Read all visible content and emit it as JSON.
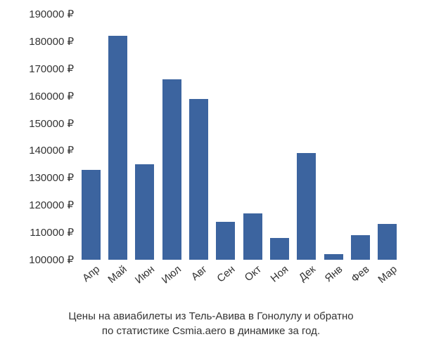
{
  "chart": {
    "type": "bar",
    "background_color": "#ffffff",
    "bar_color": "#3c649f",
    "text_color": "#333333",
    "currency_symbol": "₽",
    "ylim": [
      100000,
      190000
    ],
    "ytick_step": 10000,
    "yticks": [
      100000,
      110000,
      120000,
      130000,
      140000,
      150000,
      160000,
      170000,
      180000,
      190000
    ],
    "ytick_labels": [
      "100000 ₽",
      "110000 ₽",
      "120000 ₽",
      "130000 ₽",
      "140000 ₽",
      "150000 ₽",
      "160000 ₽",
      "170000 ₽",
      "180000 ₽",
      "190000 ₽"
    ],
    "categories": [
      "Апр",
      "Май",
      "Июн",
      "Июл",
      "Авг",
      "Сен",
      "Окт",
      "Ноя",
      "Дек",
      "Янв",
      "Фев",
      "Мар"
    ],
    "values": [
      133000,
      182000,
      135000,
      166000,
      159000,
      114000,
      117000,
      108000,
      139000,
      102000,
      109000,
      113000
    ],
    "bar_width": 0.7,
    "x_label_rotation_deg": -40,
    "label_fontsize": 15,
    "caption_fontsize": 15,
    "caption_line1": "Цены на авиабилеты из Тель-Авива в Гонолулу и обратно",
    "caption_line2": "по статистике Csmia.aero в динамике за год."
  }
}
